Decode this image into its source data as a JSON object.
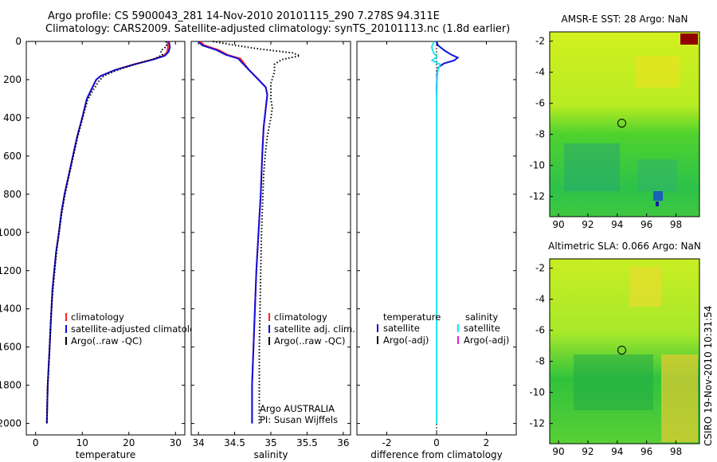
{
  "title_line1": "Argo profile: CS 5900043_281 14-Nov-2010 20101115_290 7.278S 94.311E",
  "title_line2": "Climatology: CARS2009. Satellite-adjusted climatology: synTS_20101113.nc (1.8d earlier)",
  "side_label": "CSIRO 19-Nov-2010 10:31:54",
  "colors": {
    "climatology": "#ff2020",
    "satellite": "#1010dd",
    "argo": "#000000",
    "satellite_sal": "#22e6ee",
    "argo_adj_sal": "#e020d0"
  },
  "chart_data": [
    {
      "type": "line",
      "name": "temperature-panel",
      "xlabel": "temperature",
      "xlim": [
        -2,
        32
      ],
      "xticks": [
        0,
        10,
        20,
        30
      ],
      "ylim": [
        2060,
        0
      ],
      "yticks": [
        0,
        200,
        400,
        600,
        800,
        1000,
        1200,
        1400,
        1600,
        1800,
        2000
      ],
      "legend": [
        "climatology",
        "satellite-adjusted climatology",
        "Argo(..raw -QC)"
      ],
      "series": [
        {
          "name": "climatology",
          "color_key": "climatology",
          "style": "solid",
          "points": [
            [
              28.3,
              0
            ],
            [
              28.4,
              30
            ],
            [
              28.2,
              55
            ],
            [
              27.5,
              75
            ],
            [
              25,
              95
            ],
            [
              21,
              120
            ],
            [
              17,
              150
            ],
            [
              14,
              180
            ],
            [
              13,
              200
            ],
            [
              12,
              250
            ],
            [
              11,
              300
            ],
            [
              10,
              400
            ],
            [
              8.9,
              500
            ],
            [
              8,
              600
            ],
            [
              7.1,
              700
            ],
            [
              6.2,
              800
            ],
            [
              5.5,
              900
            ],
            [
              5,
              1000
            ],
            [
              4.4,
              1100
            ],
            [
              4,
              1200
            ],
            [
              3.6,
              1300
            ],
            [
              3.4,
              1400
            ],
            [
              3.2,
              1500
            ],
            [
              3,
              1600
            ],
            [
              2.8,
              1700
            ],
            [
              2.6,
              1800
            ],
            [
              2.5,
              1900
            ],
            [
              2.4,
              2000
            ]
          ]
        },
        {
          "name": "satellite-adjusted climatology",
          "color_key": "satellite",
          "style": "solid",
          "points": [
            [
              28.6,
              0
            ],
            [
              28.8,
              30
            ],
            [
              28.5,
              55
            ],
            [
              27.7,
              75
            ],
            [
              25.2,
              95
            ],
            [
              21.2,
              120
            ],
            [
              17,
              150
            ],
            [
              14,
              180
            ],
            [
              13,
              200
            ],
            [
              12,
              250
            ],
            [
              11,
              300
            ],
            [
              10,
              400
            ],
            [
              8.9,
              500
            ],
            [
              8,
              600
            ],
            [
              7.1,
              700
            ],
            [
              6.2,
              800
            ],
            [
              5.5,
              900
            ],
            [
              5,
              1000
            ],
            [
              4.4,
              1100
            ],
            [
              4,
              1200
            ],
            [
              3.6,
              1300
            ],
            [
              3.4,
              1400
            ],
            [
              3.2,
              1500
            ],
            [
              3,
              1600
            ],
            [
              2.8,
              1700
            ],
            [
              2.6,
              1800
            ],
            [
              2.5,
              1900
            ],
            [
              2.4,
              2000
            ]
          ]
        },
        {
          "name": "Argo(..raw -QC)",
          "color_key": "argo",
          "style": "dotted",
          "points": [
            [
              28,
              0
            ],
            [
              28.1,
              25
            ],
            [
              26.8,
              50
            ],
            [
              27.2,
              70
            ],
            [
              25.6,
              90
            ],
            [
              22,
              115
            ],
            [
              18,
              145
            ],
            [
              14.6,
              180
            ],
            [
              13.5,
              210
            ],
            [
              12.2,
              260
            ],
            [
              11.1,
              310
            ],
            [
              10.1,
              400
            ],
            [
              9,
              500
            ],
            [
              8.1,
              600
            ],
            [
              7.2,
              700
            ],
            [
              6.3,
              800
            ],
            [
              5.6,
              900
            ],
            [
              5,
              1000
            ],
            [
              4.5,
              1100
            ],
            [
              4.1,
              1200
            ],
            [
              3.7,
              1300
            ],
            [
              3.4,
              1400
            ],
            [
              3.2,
              1500
            ],
            [
              3,
              1600
            ],
            [
              2.8,
              1700
            ],
            [
              2.6,
              1800
            ],
            [
              2.5,
              1900
            ],
            [
              2.4,
              2000
            ]
          ]
        }
      ]
    },
    {
      "type": "line",
      "name": "salinity-panel",
      "xlabel": "salinity",
      "xlim": [
        33.9,
        36.1
      ],
      "xticks": [
        34,
        34.5,
        35,
        35.5,
        36
      ],
      "ylim": [
        2060,
        0
      ],
      "legend": [
        "climatology",
        "satellite adj. clim.",
        "Argo(..raw -QC)"
      ],
      "annotations": [
        "Argo AUSTRALIA",
        "PI: Susan Wijffels"
      ],
      "series": [
        {
          "name": "climatology",
          "color_key": "climatology",
          "style": "solid",
          "points": [
            [
              34.02,
              0
            ],
            [
              34.08,
              20
            ],
            [
              34.28,
              45
            ],
            [
              34.4,
              70
            ],
            [
              34.58,
              90
            ],
            [
              34.62,
              110
            ],
            [
              34.7,
              150
            ],
            [
              34.83,
              200
            ],
            [
              34.93,
              240
            ],
            [
              34.95,
              280
            ],
            [
              34.93,
              350
            ],
            [
              34.9,
              450
            ],
            [
              34.88,
              600
            ],
            [
              34.86,
              800
            ],
            [
              34.83,
              1000
            ],
            [
              34.8,
              1200
            ],
            [
              34.78,
              1400
            ],
            [
              34.76,
              1600
            ],
            [
              34.74,
              1800
            ],
            [
              34.74,
              2000
            ]
          ]
        },
        {
          "name": "satellite adj. clim.",
          "color_key": "satellite",
          "style": "solid",
          "points": [
            [
              34.0,
              0
            ],
            [
              34.05,
              20
            ],
            [
              34.25,
              45
            ],
            [
              34.38,
              70
            ],
            [
              34.55,
              90
            ],
            [
              34.6,
              110
            ],
            [
              34.7,
              150
            ],
            [
              34.83,
              200
            ],
            [
              34.93,
              240
            ],
            [
              34.95,
              280
            ],
            [
              34.93,
              350
            ],
            [
              34.9,
              450
            ],
            [
              34.88,
              600
            ],
            [
              34.86,
              800
            ],
            [
              34.83,
              1000
            ],
            [
              34.8,
              1200
            ],
            [
              34.78,
              1400
            ],
            [
              34.76,
              1600
            ],
            [
              34.74,
              1800
            ],
            [
              34.74,
              2000
            ]
          ]
        },
        {
          "name": "Argo(..raw -QC)",
          "color_key": "argo",
          "style": "dotted",
          "points": [
            [
              34.2,
              0
            ],
            [
              34.5,
              20
            ],
            [
              34.85,
              40
            ],
            [
              35.3,
              60
            ],
            [
              35.4,
              75
            ],
            [
              35.15,
              95
            ],
            [
              35.05,
              120
            ],
            [
              35.05,
              160
            ],
            [
              35.0,
              220
            ],
            [
              35.0,
              300
            ],
            [
              35.02,
              350
            ],
            [
              35.0,
              400
            ],
            [
              34.95,
              500
            ],
            [
              34.92,
              600
            ],
            [
              34.9,
              700
            ],
            [
              34.89,
              800
            ],
            [
              34.88,
              900
            ],
            [
              34.87,
              1000
            ],
            [
              34.86,
              1200
            ],
            [
              34.85,
              1400
            ],
            [
              34.84,
              1600
            ],
            [
              34.84,
              1800
            ],
            [
              34.84,
              2000
            ]
          ]
        }
      ]
    },
    {
      "type": "line",
      "name": "difference-panel",
      "xlabel": "difference from climatology",
      "xlim": [
        -3.2,
        3.2
      ],
      "xticks": [
        -2,
        0,
        2
      ],
      "ylim": [
        2060,
        0
      ],
      "legend_left_title": "temperature",
      "legend_right_title": "salinity",
      "legend_left": [
        "satellite",
        "Argo(-adj)"
      ],
      "legend_right": [
        "satellite",
        "Argo(-adj)"
      ],
      "series": [
        {
          "name": "temperature satellite",
          "color_key": "satellite",
          "style": "solid",
          "points": [
            [
              0,
              0
            ],
            [
              0.05,
              20
            ],
            [
              0.35,
              50
            ],
            [
              0.6,
              70
            ],
            [
              0.85,
              85
            ],
            [
              0.7,
              100
            ],
            [
              0.3,
              115
            ],
            [
              0.08,
              135
            ],
            [
              0.02,
              170
            ],
            [
              0,
              250
            ],
            [
              0,
              2000
            ]
          ]
        },
        {
          "name": "salinity satellite",
          "color_key": "satellite_sal",
          "style": "solid",
          "points": [
            [
              -0.1,
              0
            ],
            [
              -0.2,
              30
            ],
            [
              -0.12,
              60
            ],
            [
              0.02,
              80
            ],
            [
              -0.18,
              100
            ],
            [
              0.15,
              120
            ],
            [
              0.05,
              150
            ],
            [
              0.02,
              200
            ],
            [
              0,
              300
            ],
            [
              0,
              2000
            ]
          ]
        }
      ]
    },
    {
      "type": "heatmap",
      "name": "sst-map",
      "title": "AMSR-E SST: 28 Argo: NaN",
      "xlim": [
        89.4,
        99.6
      ],
      "ylim": [
        -13.3,
        -1.4
      ],
      "xticks": [
        90,
        92,
        94,
        96,
        98
      ],
      "yticks": [
        -2,
        -4,
        -6,
        -8,
        -10,
        -12
      ],
      "marker": [
        94.311,
        -7.278
      ]
    },
    {
      "type": "heatmap",
      "name": "sla-map",
      "title": "Altimetric SLA: 0.066 Argo: NaN",
      "xlim": [
        89.4,
        99.6
      ],
      "ylim": [
        -13.3,
        -1.4
      ],
      "xticks": [
        90,
        92,
        94,
        96,
        98
      ],
      "yticks": [
        -2,
        -4,
        -6,
        -8,
        -10,
        -12
      ],
      "marker": [
        94.311,
        -7.278
      ]
    }
  ]
}
